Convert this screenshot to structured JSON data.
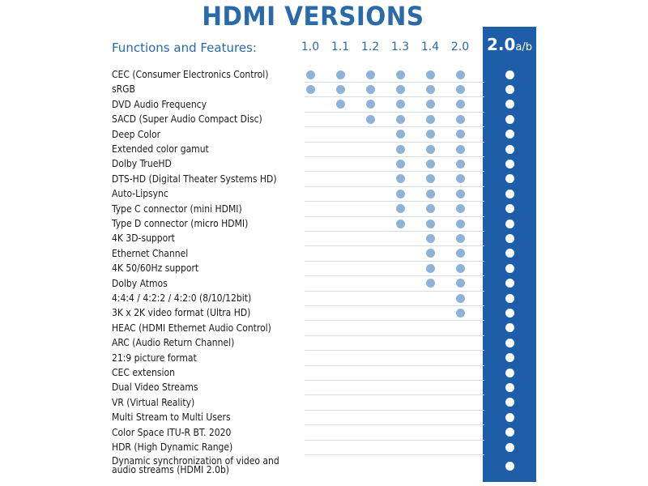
{
  "title": "HDMI VERSIONS",
  "header_label": "Functions and Features:",
  "versions": [
    "1.0",
    "1.1",
    "1.2",
    "1.3",
    "1.4",
    "2.0"
  ],
  "highlight": {
    "main": "2.0",
    "sub": "a/b"
  },
  "colors": {
    "accent": "#2a6aa8",
    "highlight_bg": "#1e5ea8",
    "dot": "#8fb3d6",
    "highlight_dot": "#ffffff"
  },
  "features": [
    {
      "label": "CEC (Consumer Electronics Control)",
      "from": 0
    },
    {
      "label": "sRGB",
      "from": 0
    },
    {
      "label": "DVD Audio Frequency",
      "from": 1
    },
    {
      "label": "SACD (Super Audio Compact Disc)",
      "from": 2
    },
    {
      "label": "Deep Color",
      "from": 3
    },
    {
      "label": "Extended color gamut",
      "from": 3
    },
    {
      "label": "Dolby TrueHD",
      "from": 3
    },
    {
      "label": "DTS-HD (Digital Theater Systems HD)",
      "from": 3
    },
    {
      "label": "Auto-Lipsync",
      "from": 3
    },
    {
      "label": "Type C connector (mini HDMI)",
      "from": 3
    },
    {
      "label": "Type D connector (micro HDMI)",
      "from": 3
    },
    {
      "label": "4K 3D-support",
      "from": 4
    },
    {
      "label": "Ethernet Channel",
      "from": 4
    },
    {
      "label": "4K 50/60Hz support",
      "from": 4
    },
    {
      "label": "Dolby Atmos",
      "from": 4
    },
    {
      "label": "4:4:4 / 4:2:2 / 4:2:0   (8/10/12bit)",
      "from": 5
    },
    {
      "label": "3K x 2K video format (Ultra HD)",
      "from": 5
    },
    {
      "label": "HEAC (HDMI Ethernet Audio Control)",
      "from": 6
    },
    {
      "label": "ARC (Audio Return Channel)",
      "from": 6
    },
    {
      "label": "21:9 picture format",
      "from": 6
    },
    {
      "label": "CEC extension",
      "from": 6
    },
    {
      "label": "Dual Video Streams",
      "from": 6
    },
    {
      "label": "VR (Virtual Reality)",
      "from": 6
    },
    {
      "label": "Multi Stream to Multi Users",
      "from": 6
    },
    {
      "label": "Color Space ITU-R BT. 2020",
      "from": 6
    },
    {
      "label": "HDR (High Dynamic Range)",
      "from": 6
    },
    {
      "label": "Dynamic synchronization of video and\naudio streams (HDMI 2.0b)",
      "from": 6
    }
  ]
}
